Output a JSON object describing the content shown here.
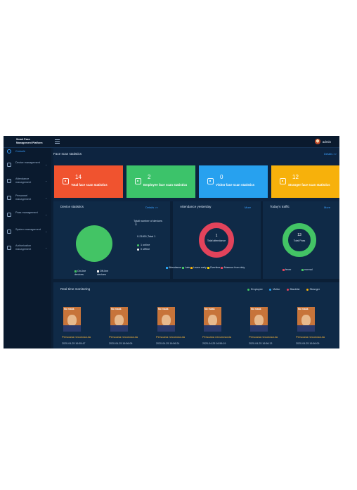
{
  "app": {
    "title_line1": "Smart Pass",
    "title_line2": "Management Platform",
    "username": "admin"
  },
  "sidebar": {
    "items": [
      {
        "label": "Console",
        "icon": "console-icon",
        "active": true
      },
      {
        "label": "Device management",
        "icon": "device-icon"
      },
      {
        "label": "Attendance management",
        "icon": "attendance-icon"
      },
      {
        "label": "Personnel management",
        "icon": "personnel-icon"
      },
      {
        "label": "Pass management",
        "icon": "pass-icon"
      },
      {
        "label": "System management",
        "icon": "system-icon"
      },
      {
        "label": "Authorization management",
        "icon": "authorization-icon"
      }
    ]
  },
  "face_scan": {
    "title": "Face scan statistics",
    "details": "Details >>",
    "cards": [
      {
        "value": "14",
        "label": "Total face scan statistics",
        "color": "#f0532f"
      },
      {
        "value": "2",
        "label": "Employee face scan statistics",
        "color": "#3cc36a"
      },
      {
        "value": "0",
        "label": "Visitor face scan statistics",
        "color": "#27a1ef"
      },
      {
        "value": "12",
        "label": "Stranger face scan statistics",
        "color": "#f7b10b"
      }
    ]
  },
  "device": {
    "title": "Device statistics",
    "details": "Details >>",
    "total_label": "Totall number of devices",
    "total_value": "1",
    "summary": "0-21801,Total 1",
    "online": "1 online",
    "offline": "0 offline",
    "legend": [
      "On-line devices",
      "Off-line devices"
    ],
    "online_color": "#43c465",
    "offline_color": "#f2f2f2"
  },
  "attendance": {
    "title": "Attendance yesterday",
    "more": "More",
    "value": "1",
    "label": "Total attendance",
    "ring_color": "#e2435b",
    "legend": [
      {
        "label": "Attendance",
        "color": "#27a1ef"
      },
      {
        "label": "Late",
        "color": "#43c465"
      },
      {
        "label": "Leave early",
        "color": "#f7b10b"
      },
      {
        "label": "Overtime",
        "color": "#f5d000"
      },
      {
        "label": "Absence from duty",
        "color": "#e2435b"
      }
    ]
  },
  "traffic": {
    "title": "Today's traffic",
    "more": "More",
    "value": "13",
    "label": "Total Pass",
    "ring_color": "#43c465",
    "legend": [
      {
        "label": "fever",
        "color": "#e2435b"
      },
      {
        "label": "normal",
        "color": "#43c465"
      }
    ]
  },
  "monitor": {
    "title": "Real time monitoring",
    "legend": [
      {
        "label": "Employee",
        "color": "#43c465"
      },
      {
        "label": "Visitor",
        "color": "#27a1ef"
      },
      {
        "label": "Blacklist",
        "color": "#e2435b"
      },
      {
        "label": "Stranger",
        "color": "#f7b10b"
      }
    ],
    "items": [
      {
        "tag": "No mask",
        "name": "Persoana necunoscuta",
        "time": "2020-04-25 16:55:47",
        "id": "8CFCA0836438"
      },
      {
        "tag": "No mask",
        "name": "Persoana necunoscuta",
        "time": "2020-04-25 16:56:06",
        "id": "8CFCA0836438"
      },
      {
        "tag": "No mask",
        "name": "Persoana necunoscuta",
        "time": "2020-04-25 16:56:24",
        "id": "8CFCA0836438"
      },
      {
        "tag": "No mask",
        "name": "Persoana necunoscuta",
        "time": "2020-04-25 16:56:19",
        "id": "8CFCA0836438"
      },
      {
        "tag": "No mask",
        "name": "Persoana necunoscuta",
        "time": "2020-04-25 16:56:13",
        "id": "8CFCA0836438"
      },
      {
        "tag": "No mask",
        "name": "Persoana necunoscuta",
        "time": "2020-04-25 16:56:09",
        "id": "8CFCA0836438"
      }
    ]
  }
}
